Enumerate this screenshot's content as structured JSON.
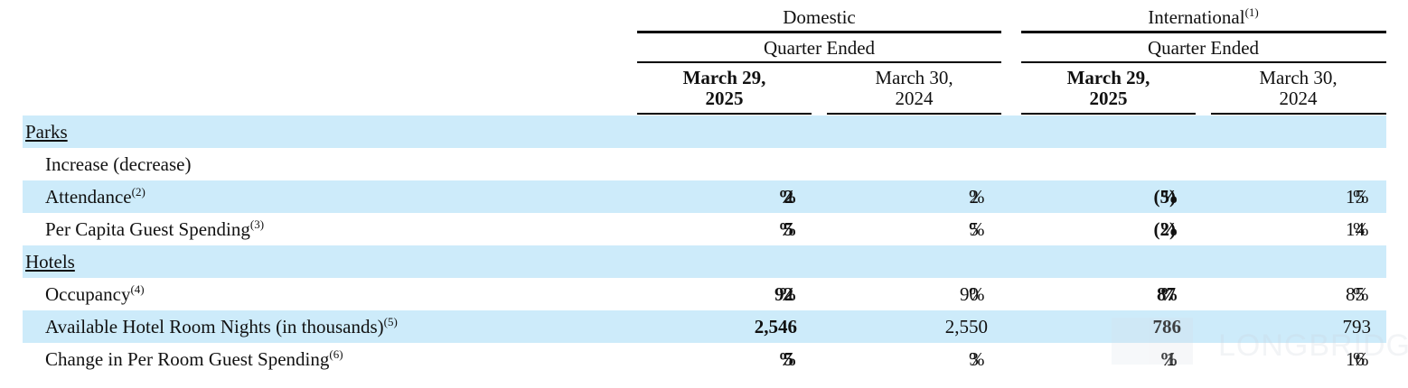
{
  "header": {
    "groups": [
      {
        "label": "Domestic",
        "footnote": "",
        "period_label": "Quarter Ended"
      },
      {
        "label": "International",
        "footnote": "(1)",
        "period_label": "Quarter Ended"
      }
    ],
    "columns": [
      {
        "line1": "March 29,",
        "line2": "2025"
      },
      {
        "line1": "March 30,",
        "line2": "2024"
      },
      {
        "line1": "March 29,",
        "line2": "2025"
      },
      {
        "line1": "March 30,",
        "line2": "2024"
      }
    ]
  },
  "sections": [
    {
      "title": "Parks",
      "rows": [
        {
          "label": "Increase (decrease)",
          "footnote": "",
          "values": [
            {
              "v": "",
              "u": ""
            },
            {
              "v": "",
              "u": ""
            },
            {
              "v": "",
              "u": ""
            },
            {
              "v": "",
              "u": ""
            }
          ]
        },
        {
          "label": "Attendance",
          "footnote": "(2)",
          "values": [
            {
              "v": "2",
              "u": "%"
            },
            {
              "v": "2",
              "u": "%"
            },
            {
              "v": "(5)",
              "u": "%"
            },
            {
              "v": "15",
              "u": "%"
            }
          ]
        },
        {
          "label": "Per Capita Guest Spending",
          "footnote": "(3)",
          "values": [
            {
              "v": "5",
              "u": "%"
            },
            {
              "v": "5",
              "u": "%"
            },
            {
              "v": "(2)",
              "u": "%"
            },
            {
              "v": "14",
              "u": "%"
            }
          ]
        }
      ]
    },
    {
      "title": "Hotels",
      "rows": [
        {
          "label": "Occupancy",
          "footnote": "(4)",
          "values": [
            {
              "v": "92",
              "u": "%"
            },
            {
              "v": "90",
              "u": "%"
            },
            {
              "v": "87",
              "u": "%"
            },
            {
              "v": "85",
              "u": "%"
            }
          ]
        },
        {
          "label": "Available Hotel Room Nights (in thousands)",
          "footnote": "(5)",
          "values": [
            {
              "v": "2,546",
              "u": ""
            },
            {
              "v": "2,550",
              "u": ""
            },
            {
              "v": "786",
              "u": ""
            },
            {
              "v": "793",
              "u": ""
            }
          ]
        },
        {
          "label": "Change in Per Room Guest Spending",
          "footnote": "(6)",
          "values": [
            {
              "v": "5",
              "u": "%"
            },
            {
              "v": "3",
              "u": "%"
            },
            {
              "v": "1",
              "u": "%"
            },
            {
              "v": "16",
              "u": "%"
            }
          ]
        }
      ]
    }
  ],
  "watermark": {
    "text": "LONGBRIDGE"
  },
  "colors": {
    "row_shade": "#cdebfa",
    "rule": "#000000"
  }
}
